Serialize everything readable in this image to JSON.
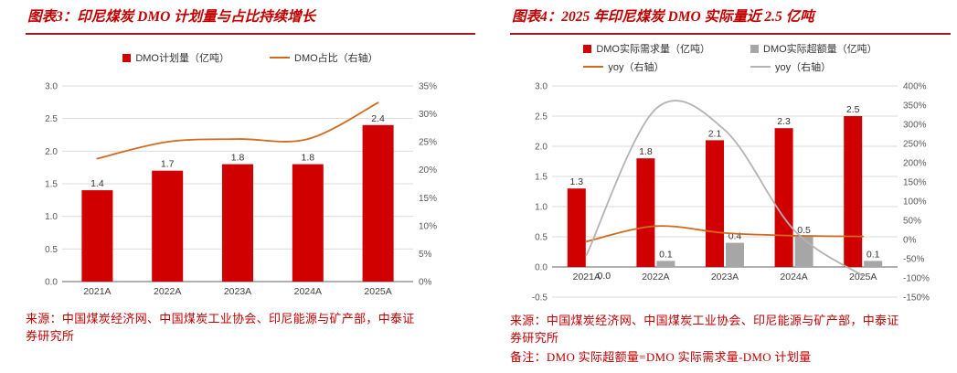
{
  "colors": {
    "title_red": "#c00000",
    "title_underline": "#9e1b1b",
    "bar_red": "#d00000",
    "bar_gray": "#a6a6a6",
    "line_orange": "#d2691e",
    "line_gray": "#b3b3b3",
    "gridline": "#dbdbdb",
    "zero_axis": "#808080"
  },
  "chart_data": [
    {
      "id": "chart3",
      "type": "bar+line",
      "title": "图表3：印尼煤炭 DMO 计划量与占比持续增长",
      "source": "来源：中国煤炭经济网、中国煤炭工业协会、印尼能源与矿产部，中泰证券研究所",
      "categories": [
        "2021A",
        "2022A",
        "2023A",
        "2024A",
        "2025A"
      ],
      "series": [
        {
          "key": "dmo-plan",
          "name": "DMO计划量（亿吨）",
          "type": "bar",
          "axis": "left",
          "color": "#d00000",
          "values": [
            1.4,
            1.7,
            1.8,
            1.8,
            2.4
          ],
          "labels": [
            "1.4",
            "1.7",
            "1.8",
            "1.8",
            "2.4"
          ]
        },
        {
          "key": "dmo-share",
          "name": "DMO占比（右轴）",
          "type": "line",
          "axis": "right",
          "color": "#d2691e",
          "values": [
            22,
            25,
            25.5,
            25.5,
            32
          ]
        }
      ],
      "left_axis": {
        "min": 0,
        "max": 3,
        "step": 0.5,
        "format": "number"
      },
      "right_axis": {
        "min": 0,
        "max": 35,
        "step": 5,
        "format": "percent"
      },
      "grid": true,
      "legend_position": "top"
    },
    {
      "id": "chart4",
      "type": "bar+line",
      "title": "图表4：2025 年印尼煤炭 DMO 实际量近 2.5 亿吨",
      "source": "来源：中国煤炭经济网、中国煤炭工业协会、印尼能源与矿产部，中泰证券研究所",
      "note": "备注：DMO 实际超额量=DMO 实际需求量-DMO 计划量",
      "categories": [
        "2021A",
        "2022A",
        "2023A",
        "2024A",
        "2025A"
      ],
      "series": [
        {
          "key": "dmo-actual-demand",
          "name": "DMO实际需求量（亿吨）",
          "type": "bar",
          "axis": "left",
          "color": "#d00000",
          "values": [
            1.3,
            1.8,
            2.1,
            2.3,
            2.5
          ],
          "labels": [
            "1.3",
            "1.8",
            "2.1",
            "2.3",
            "2.5"
          ]
        },
        {
          "key": "dmo-excess",
          "name": "DMO实际超额量（亿吨）",
          "type": "bar",
          "axis": "left",
          "color": "#a6a6a6",
          "values": [
            0.0,
            0.1,
            0.4,
            0.5,
            0.1
          ],
          "labels": [
            "0.0",
            "0.1",
            "0.4",
            "0.5",
            "0.1"
          ]
        },
        {
          "key": "dmo-actual-demand-yoy",
          "name": "yoy（右轴）",
          "type": "line",
          "axis": "right",
          "color": "#d2691e",
          "values": [
            -5,
            35,
            17,
            10,
            8
          ]
        },
        {
          "key": "dmo-excess-yoy",
          "name": "yoy（右轴）",
          "type": "line",
          "axis": "right",
          "color": "#b3b3b3",
          "values": [
            -40,
            340,
            285,
            25,
            -95
          ]
        }
      ],
      "left_axis": {
        "min": -0.5,
        "max": 3,
        "step": 0.5,
        "format": "number"
      },
      "right_axis": {
        "min": -150,
        "max": 400,
        "step": 50,
        "format": "percent"
      },
      "grid": true,
      "legend_position": "top"
    }
  ]
}
